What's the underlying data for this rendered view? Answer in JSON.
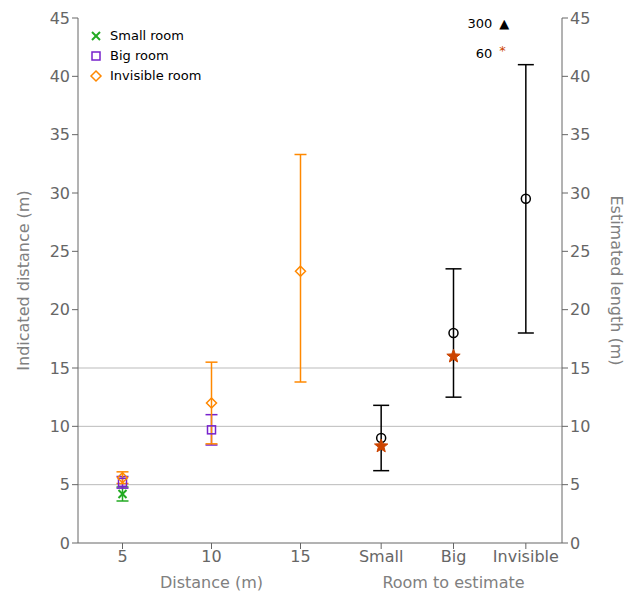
{
  "chart_data": [
    {
      "type": "scatter",
      "xlabel": "Distance (m)",
      "ylabel": "Indicated distance (m)",
      "xlim": [
        2.5,
        17.5
      ],
      "xticks": [
        5,
        10,
        15
      ],
      "ylim": [
        0,
        45
      ],
      "yticks": [
        0,
        5,
        10,
        15,
        20,
        25,
        30,
        35,
        40,
        45
      ],
      "legend": "upper left",
      "reference_lines": [
        5,
        10,
        15
      ],
      "series": [
        {
          "name": "Small room",
          "color": "#22aa22",
          "marker": "x",
          "x": [
            5
          ],
          "values": [
            4.2
          ],
          "error_low": [
            0.6
          ],
          "error_high": [
            0.6
          ]
        },
        {
          "name": "Big room",
          "color": "#7722cc",
          "marker": "square",
          "x": [
            5,
            10
          ],
          "values": [
            5.2,
            9.7
          ],
          "error_low": [
            0.5,
            1.3
          ],
          "error_high": [
            0.5,
            1.3
          ]
        },
        {
          "name": "Invisible room",
          "color": "#ff8800",
          "marker": "diamond",
          "x": [
            5,
            10,
            15
          ],
          "values": [
            5.6,
            12.0,
            23.3
          ],
          "error_low": [
            0.5,
            3.5,
            9.5
          ],
          "error_high": [
            0.5,
            3.5,
            10.0
          ]
        }
      ]
    },
    {
      "type": "scatter",
      "categories": [
        "Small",
        "Big",
        "Invisible"
      ],
      "xlabel": "Room to estimate",
      "ylabel": "Estimated length (m)",
      "ylim": [
        0,
        45
      ],
      "yticks": [
        0,
        5,
        10,
        15,
        20,
        25,
        30,
        35,
        40,
        45
      ],
      "reference_lines": [
        5,
        10,
        15
      ],
      "series": [
        {
          "color": "black",
          "marker": "circle",
          "values": [
            9.0,
            18.0,
            29.5
          ],
          "error_low": [
            2.8,
            5.5,
            11.5
          ],
          "error_high": [
            2.8,
            5.5,
            11.5
          ]
        },
        {
          "color": "#cc4400",
          "marker": "star",
          "values": [
            8.3,
            16.0,
            null
          ]
        }
      ],
      "annotations": [
        {
          "text": "300",
          "x": 1.55,
          "y": 44.5,
          "color": "black"
        },
        {
          "text": "▲",
          "x": 1.62,
          "y": 44.5,
          "color": "black"
        },
        {
          "text": "60",
          "x": 1.55,
          "y": 42.0,
          "color": "black"
        },
        {
          "text": "*",
          "x": 1.62,
          "y": 42.2,
          "color": "#cc4400"
        }
      ]
    }
  ]
}
